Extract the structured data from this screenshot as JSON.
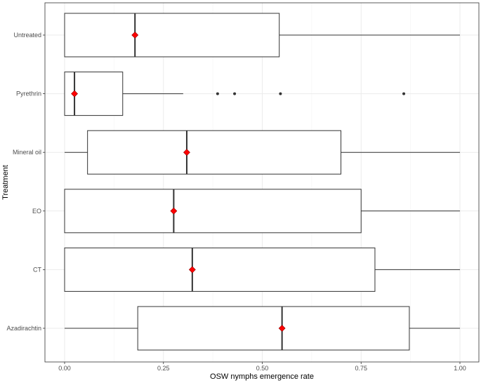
{
  "chart_data": {
    "type": "boxplot",
    "orientation": "horizontal",
    "xlabel": "OSW nymphs emergence rate",
    "ylabel": "Treatment",
    "xlim": [
      0,
      1
    ],
    "x_ticks": [
      0,
      0.25,
      0.5,
      0.75,
      1
    ],
    "x_tick_labels": [
      "0.00",
      "0.25",
      "0.50",
      "0.75",
      "1.00"
    ],
    "grid": true,
    "theme": "bw",
    "mean_marker": {
      "shape": "diamond",
      "color": "#ff0000"
    },
    "categories": [
      "Untreated",
      "Pyrethrin",
      "Mineral oil",
      "EO",
      "CT",
      "Azadirachtin"
    ],
    "boxes": [
      {
        "category": "Untreated",
        "whisker_low": 0,
        "q1": 0,
        "median": 0.178,
        "q3": 0.543,
        "whisker_high": 1,
        "mean": 0.178,
        "outliers": []
      },
      {
        "category": "Pyrethrin",
        "whisker_low": 0,
        "q1": 0,
        "median": 0.025,
        "q3": 0.147,
        "whisker_high": 0.3,
        "mean": 0.025,
        "outliers": [
          0.387,
          0.43,
          0.546,
          0.858
        ]
      },
      {
        "category": "Mineral oil",
        "whisker_low": 0,
        "q1": 0.058,
        "median": 0.309,
        "q3": 0.699,
        "whisker_high": 1,
        "mean": 0.309,
        "outliers": []
      },
      {
        "category": "EO",
        "whisker_low": 0,
        "q1": 0,
        "median": 0.276,
        "q3": 0.75,
        "whisker_high": 1,
        "mean": 0.276,
        "outliers": []
      },
      {
        "category": "CT",
        "whisker_low": 0,
        "q1": 0,
        "median": 0.323,
        "q3": 0.785,
        "whisker_high": 1,
        "mean": 0.323,
        "outliers": []
      },
      {
        "category": "Azadirachtin",
        "whisker_low": 0,
        "q1": 0.185,
        "median": 0.55,
        "q3": 0.872,
        "whisker_high": 1,
        "mean": 0.55,
        "outliers": []
      }
    ]
  }
}
